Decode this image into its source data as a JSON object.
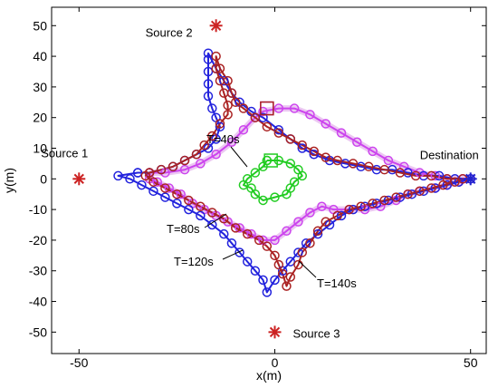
{
  "chart_data": {
    "type": "line",
    "xlabel": "x(m)",
    "ylabel": "y(m)",
    "xlim": [
      -57,
      54
    ],
    "ylim": [
      -57,
      56
    ],
    "xticks": [
      -50,
      0,
      50
    ],
    "yticks": [
      -50,
      -40,
      -30,
      -20,
      -10,
      0,
      10,
      20,
      30,
      40,
      50
    ],
    "grid": false,
    "colors": {
      "T40": "#22cc22",
      "T80": "#cc44ee",
      "T120": "#2222dd",
      "T140": "#aa2222",
      "source_marker": "#cc2222",
      "destination_marker": "#2222cc"
    },
    "markers": [
      {
        "label": "Source 1",
        "x": -50,
        "y": 0,
        "symbol": "asterisk",
        "color": "#cc2222"
      },
      {
        "label": "Source 2",
        "x": -15,
        "y": 50,
        "symbol": "asterisk",
        "color": "#cc2222"
      },
      {
        "label": "Source 3",
        "x": 0,
        "y": -50,
        "symbol": "asterisk",
        "color": "#cc2222"
      },
      {
        "label": "Destination",
        "x": 50,
        "y": 0,
        "symbol": "asterisk",
        "color": "#2222cc"
      }
    ],
    "series": [
      {
        "name": "T=40s",
        "color": "#22cc22",
        "points": [
          [
            -2,
            6
          ],
          [
            1,
            6
          ],
          [
            4,
            5
          ],
          [
            6,
            3
          ],
          [
            7,
            1
          ],
          [
            5,
            -1
          ],
          [
            4,
            -3
          ],
          [
            3,
            -5
          ],
          [
            0,
            -6
          ],
          [
            -3,
            -7
          ],
          [
            -5,
            -5
          ],
          [
            -6,
            -3
          ],
          [
            -8,
            -2
          ],
          [
            -7,
            0
          ],
          [
            -5,
            2
          ],
          [
            -3,
            4
          ],
          [
            -2,
            6
          ]
        ],
        "square": [
          -1,
          6
        ]
      },
      {
        "name": "T=80s",
        "color": "#cc44ee",
        "points": [
          [
            -32,
            2
          ],
          [
            -28,
            2
          ],
          [
            -23,
            3
          ],
          [
            -19,
            5
          ],
          [
            -15,
            8
          ],
          [
            -11,
            12
          ],
          [
            -8,
            16
          ],
          [
            -5,
            20
          ],
          [
            -3,
            22
          ],
          [
            1,
            23
          ],
          [
            5,
            23
          ],
          [
            9,
            21
          ],
          [
            13,
            18
          ],
          [
            17,
            15
          ],
          [
            21,
            12
          ],
          [
            25,
            9
          ],
          [
            29,
            6
          ],
          [
            33,
            4
          ],
          [
            37,
            2
          ],
          [
            41,
            1
          ],
          [
            44,
            0
          ],
          [
            48,
            0
          ],
          [
            50,
            0
          ],
          [
            47,
            -1
          ],
          [
            44,
            -2
          ],
          [
            41,
            -3
          ],
          [
            37,
            -4
          ],
          [
            34,
            -5
          ],
          [
            31,
            -7
          ],
          [
            27,
            -9
          ],
          [
            23,
            -10
          ],
          [
            19,
            -10
          ],
          [
            15,
            -10
          ],
          [
            12,
            -9
          ],
          [
            9,
            -11
          ],
          [
            6,
            -14
          ],
          [
            3,
            -17
          ],
          [
            0,
            -20
          ],
          [
            -3,
            -20
          ],
          [
            -6,
            -18
          ],
          [
            -9,
            -16
          ],
          [
            -12,
            -14
          ],
          [
            -15,
            -12
          ],
          [
            -18,
            -10
          ],
          [
            -21,
            -8
          ],
          [
            -24,
            -5
          ],
          [
            -27,
            -3
          ],
          [
            -30,
            -1
          ],
          [
            -32,
            0
          ],
          [
            -32,
            2
          ]
        ],
        "square": [
          -2,
          23
        ]
      },
      {
        "name": "T=120s",
        "color": "#2222dd",
        "points": [
          [
            -35,
            2
          ],
          [
            -32,
            2
          ],
          [
            -29,
            3
          ],
          [
            -26,
            4
          ],
          [
            -23,
            6
          ],
          [
            -20,
            8
          ],
          [
            -17,
            10
          ],
          [
            -15,
            13
          ],
          [
            -14,
            17
          ],
          [
            -15,
            20
          ],
          [
            -16,
            23
          ],
          [
            -17,
            27
          ],
          [
            -17,
            31
          ],
          [
            -17,
            35
          ],
          [
            -17,
            39
          ],
          [
            -17,
            41
          ],
          [
            -15,
            36
          ],
          [
            -13,
            32
          ],
          [
            -11,
            28
          ],
          [
            -9,
            25
          ],
          [
            -6,
            22
          ],
          [
            -3,
            20
          ],
          [
            1,
            16
          ],
          [
            4,
            13
          ],
          [
            7,
            10
          ],
          [
            10,
            8
          ],
          [
            14,
            6
          ],
          [
            18,
            5
          ],
          [
            22,
            4
          ],
          [
            26,
            3
          ],
          [
            30,
            3
          ],
          [
            34,
            2
          ],
          [
            38,
            1
          ],
          [
            42,
            1
          ],
          [
            46,
            0
          ],
          [
            50,
            0
          ],
          [
            47,
            -1
          ],
          [
            44,
            -2
          ],
          [
            41,
            -3
          ],
          [
            38,
            -4
          ],
          [
            35,
            -5
          ],
          [
            32,
            -6
          ],
          [
            29,
            -7
          ],
          [
            26,
            -8
          ],
          [
            23,
            -9
          ],
          [
            20,
            -10
          ],
          [
            17,
            -12
          ],
          [
            14,
            -15
          ],
          [
            11,
            -18
          ],
          [
            8,
            -21
          ],
          [
            6,
            -24
          ],
          [
            4,
            -27
          ],
          [
            2,
            -30
          ],
          [
            0,
            -33
          ],
          [
            -2,
            -37
          ],
          [
            -3,
            -33
          ],
          [
            -5,
            -30
          ],
          [
            -7,
            -27
          ],
          [
            -9,
            -24
          ],
          [
            -11,
            -21
          ],
          [
            -13,
            -18
          ],
          [
            -16,
            -15
          ],
          [
            -19,
            -12
          ],
          [
            -22,
            -10
          ],
          [
            -25,
            -8
          ],
          [
            -28,
            -6
          ],
          [
            -31,
            -4
          ],
          [
            -34,
            -2
          ],
          [
            -37,
            0
          ],
          [
            -40,
            1
          ],
          [
            -35,
            2
          ]
        ]
      },
      {
        "name": "T=140s",
        "color": "#aa2222",
        "points": [
          [
            -32,
            2
          ],
          [
            -29,
            3
          ],
          [
            -26,
            4
          ],
          [
            -23,
            6
          ],
          [
            -20,
            8
          ],
          [
            -18,
            11
          ],
          [
            -16,
            14
          ],
          [
            -14,
            18
          ],
          [
            -12,
            21
          ],
          [
            -12,
            24
          ],
          [
            -13,
            28
          ],
          [
            -14,
            32
          ],
          [
            -15,
            36
          ],
          [
            -15,
            40
          ],
          [
            -14,
            36
          ],
          [
            -12,
            32
          ],
          [
            -11,
            28
          ],
          [
            -10,
            25
          ],
          [
            -8,
            23
          ],
          [
            -5,
            20
          ],
          [
            -2,
            17
          ],
          [
            1,
            15
          ],
          [
            4,
            13
          ],
          [
            7,
            11
          ],
          [
            10,
            9
          ],
          [
            13,
            7
          ],
          [
            16,
            6
          ],
          [
            20,
            5
          ],
          [
            24,
            4
          ],
          [
            28,
            3
          ],
          [
            32,
            2
          ],
          [
            36,
            1
          ],
          [
            40,
            1
          ],
          [
            44,
            0
          ],
          [
            48,
            0
          ],
          [
            46,
            -1
          ],
          [
            43,
            -2
          ],
          [
            40,
            -3
          ],
          [
            37,
            -4
          ],
          [
            34,
            -5
          ],
          [
            31,
            -6
          ],
          [
            28,
            -7
          ],
          [
            25,
            -8
          ],
          [
            22,
            -9
          ],
          [
            19,
            -10
          ],
          [
            16,
            -12
          ],
          [
            13,
            -14
          ],
          [
            11,
            -17
          ],
          [
            9,
            -21
          ],
          [
            7,
            -24
          ],
          [
            6,
            -28
          ],
          [
            4,
            -32
          ],
          [
            3,
            -35
          ],
          [
            2,
            -31
          ],
          [
            1,
            -28
          ],
          [
            0,
            -25
          ],
          [
            -2,
            -22
          ],
          [
            -4,
            -20
          ],
          [
            -7,
            -18
          ],
          [
            -10,
            -16
          ],
          [
            -13,
            -13
          ],
          [
            -16,
            -11
          ],
          [
            -19,
            -9
          ],
          [
            -22,
            -7
          ],
          [
            -25,
            -5
          ],
          [
            -28,
            -3
          ],
          [
            -31,
            -1
          ],
          [
            -33,
            1
          ],
          [
            -32,
            2
          ]
        ],
        "square": [
          -2,
          23
        ]
      }
    ],
    "annotations": [
      {
        "text": "T=40s"
      },
      {
        "text": "T=80s"
      },
      {
        "text": "T=120s"
      },
      {
        "text": "T=140s"
      }
    ]
  }
}
